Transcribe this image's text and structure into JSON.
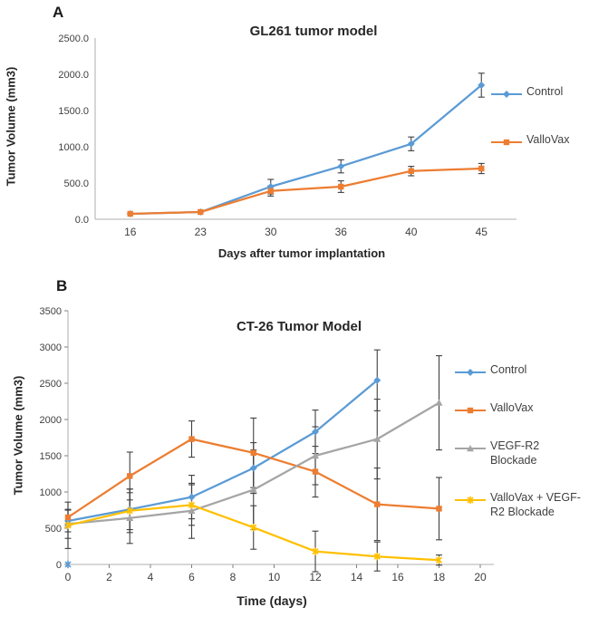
{
  "figure": {
    "background": "#ffffff",
    "axis_color": "#bfbfbf",
    "tick_color": "#808080",
    "error_bar_color": "#404040",
    "text_color": "#404040"
  },
  "chart_data": [
    {
      "type": "line",
      "panel_label": "A",
      "title": "GL261 tumor model",
      "xlabel": "Days after tumor implantation",
      "ylabel": "Tumor Volume (mm3)",
      "x_categories": [
        "16",
        "23",
        "30",
        "36",
        "40",
        "45"
      ],
      "y_ticks": [
        "0.0",
        "500.0",
        "1000.0",
        "1500.0",
        "2000.0",
        "2500.0"
      ],
      "ylim": [
        0,
        2500
      ],
      "grid": false,
      "legend_position": "right",
      "series": [
        {
          "name": "Control",
          "color": "#5B9BD5",
          "marker": "diamond",
          "values": [
            75,
            100,
            450,
            730,
            1040,
            1850
          ],
          "errors": [
            0,
            0,
            100,
            90,
            95,
            165
          ]
        },
        {
          "name": "ValloVax",
          "color": "#ED7D31",
          "marker": "square",
          "values": [
            75,
            100,
            390,
            450,
            665,
            700
          ],
          "errors": [
            0,
            0,
            70,
            80,
            65,
            70
          ]
        }
      ]
    },
    {
      "type": "line",
      "panel_label": "B",
      "title": "CT-26 Tumor Model",
      "xlabel": "Time (days)",
      "ylabel": "Tumor Volume (mm3)",
      "x": [
        0,
        3,
        6,
        9,
        12,
        15,
        18
      ],
      "x_ticks": [
        "0",
        "2",
        "4",
        "6",
        "8",
        "10",
        "12",
        "14",
        "16",
        "18",
        "20"
      ],
      "xlim": [
        0,
        20
      ],
      "y_ticks": [
        "0",
        "500",
        "1000",
        "1500",
        "2000",
        "2500",
        "3000",
        "3500"
      ],
      "ylim": [
        0,
        3500
      ],
      "grid": false,
      "legend_position": "right",
      "series": [
        {
          "name": "Control",
          "color": "#5B9BD5",
          "marker": "diamond",
          "values": [
            600,
            760,
            930,
            1330,
            1830,
            2540,
            null
          ],
          "errors": [
            150,
            280,
            300,
            350,
            300,
            420,
            null
          ]
        },
        {
          "name": "ValloVax",
          "color": "#ED7D31",
          "marker": "square",
          "values": [
            650,
            1220,
            1730,
            1540,
            1280,
            830,
            770
          ],
          "errors": [
            100,
            330,
            250,
            480,
            350,
            500,
            430
          ]
        },
        {
          "name": "VEGF-R2 Blockade",
          "color": "#A5A5A5",
          "marker": "triangle",
          "values": [
            560,
            640,
            740,
            1030,
            1500,
            1730,
            2230
          ],
          "errors": [
            200,
            350,
            380,
            550,
            400,
            550,
            650
          ]
        },
        {
          "name": "ValloVax + VEGF-R2 Blockade",
          "color": "#FFC000",
          "marker": "asterisk",
          "values": [
            540,
            740,
            820,
            510,
            180,
            110,
            60
          ],
          "errors": [
            320,
            300,
            280,
            300,
            280,
            200,
            70
          ]
        }
      ],
      "annotations": [
        {
          "type": "marker",
          "marker": "asterisk",
          "color": "#5B9BD5",
          "x": 0,
          "y": 0
        }
      ]
    }
  ]
}
